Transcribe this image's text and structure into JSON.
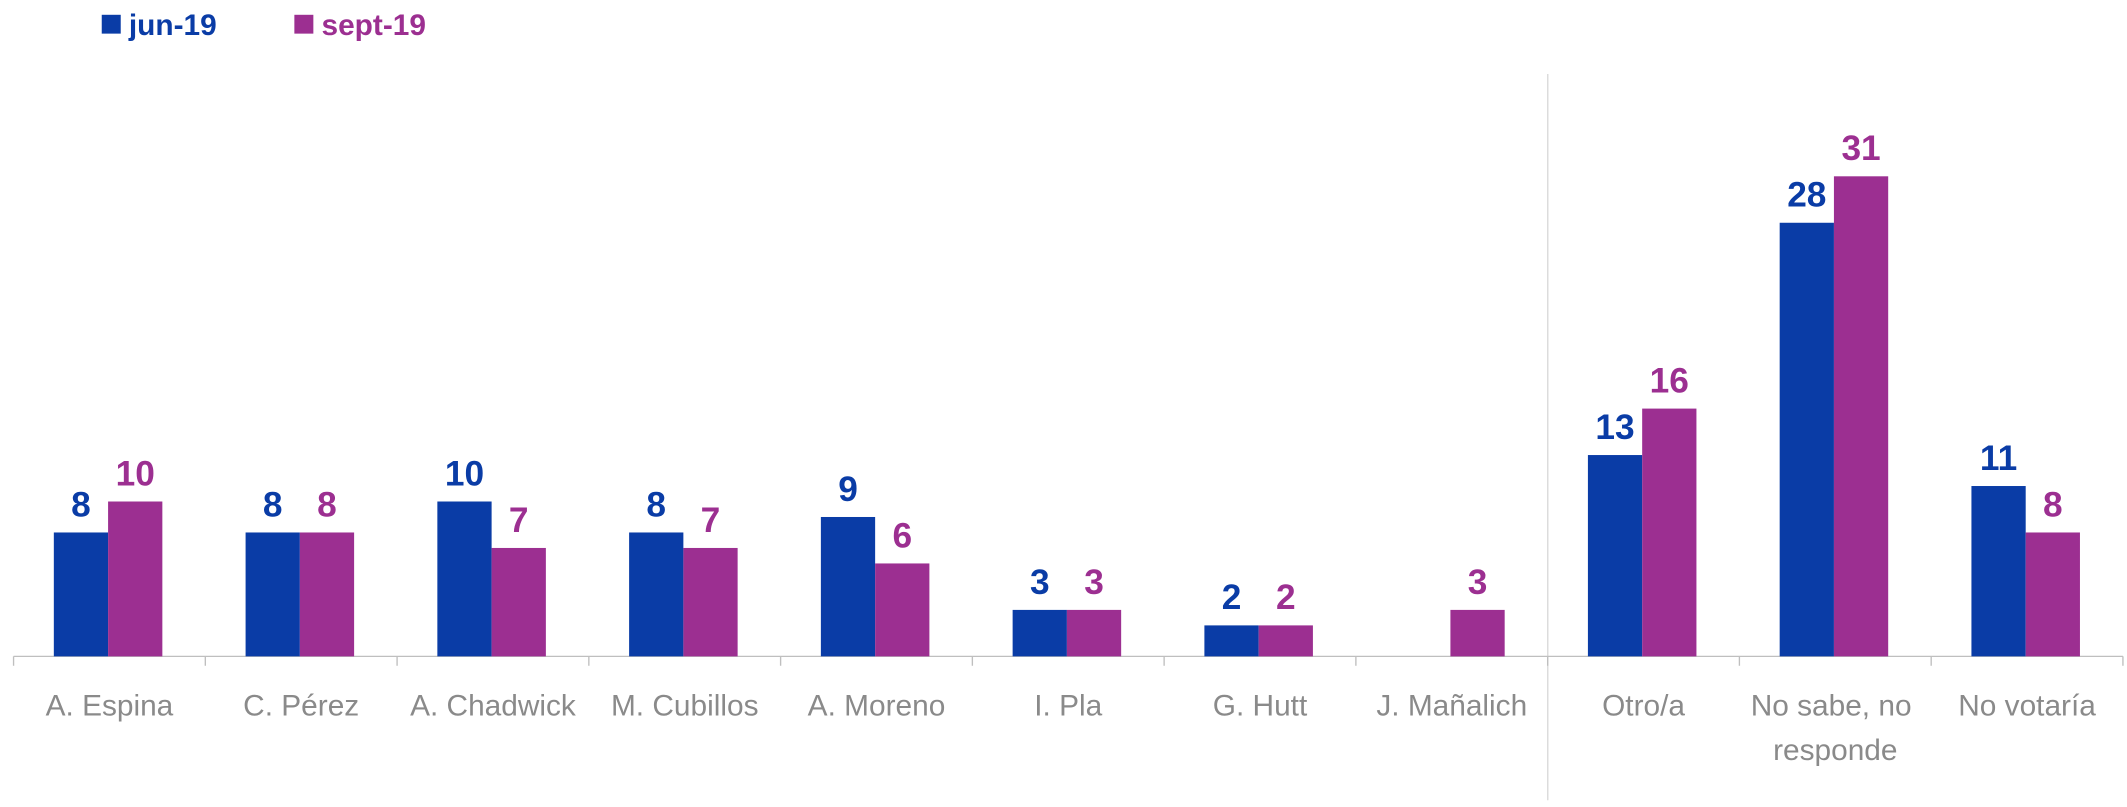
{
  "chart_data": {
    "type": "bar",
    "categories": [
      "A. Espina",
      "C. Pérez",
      "A. Chadwick",
      "M. Cubillos",
      "A. Moreno",
      "I. Pla",
      "G. Hutt",
      "J. Mañalich",
      "Otro/a",
      "No sabe, no responde",
      "No votaría"
    ],
    "series": [
      {
        "name": "jun-19",
        "color": "#0a3ca6",
        "values": [
          8,
          8,
          10,
          8,
          9,
          3,
          2,
          null,
          13,
          28,
          11
        ]
      },
      {
        "name": "sept-19",
        "color": "#9c2f91",
        "values": [
          10,
          8,
          7,
          7,
          6,
          3,
          2,
          3,
          16,
          31,
          8
        ]
      }
    ],
    "ylim": [
      0,
      37
    ],
    "legend": "top-left",
    "grid": false
  }
}
